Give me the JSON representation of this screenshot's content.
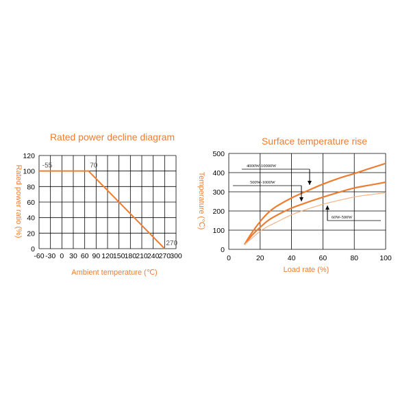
{
  "colors": {
    "accent": "#ED7D31",
    "grid": "#000000",
    "light_series": "#F4B183"
  },
  "chart_data": [
    {
      "type": "line",
      "title": "Rated power decline diagram",
      "xlabel": "Ambient temperature (℃)",
      "ylabel": "Rated power ratio (%)",
      "xlim": [
        -60,
        300
      ],
      "ylim": [
        0,
        120
      ],
      "x_ticks": [
        -60,
        -30,
        0,
        30,
        60,
        90,
        120,
        150,
        180,
        210,
        240,
        270,
        300
      ],
      "y_ticks": [
        0,
        20,
        40,
        60,
        80,
        100,
        120
      ],
      "grid": true,
      "series": [
        {
          "x": [
            -60,
            70,
            270
          ],
          "y": [
            100,
            100,
            0
          ]
        }
      ],
      "annotations": [
        {
          "text": "-55",
          "x": -55,
          "y": 100
        },
        {
          "text": "70",
          "x": 70,
          "y": 100
        },
        {
          "text": "270",
          "x": 270,
          "y": 0
        }
      ]
    },
    {
      "type": "line",
      "title": "Surface temperature rise",
      "xlabel": "Load rate (%)",
      "ylabel": "Temperature (℃)",
      "xlim": [
        0,
        100
      ],
      "ylim": [
        0,
        500
      ],
      "x_ticks": [
        0,
        20,
        40,
        60,
        80,
        100
      ],
      "y_ticks": [
        0,
        100,
        200,
        300,
        400,
        500
      ],
      "grid": true,
      "series": [
        {
          "name": "4000W-10000W",
          "x": [
            10,
            15,
            20,
            25,
            30,
            40,
            50,
            60,
            70,
            80,
            90,
            100
          ],
          "y": [
            25,
            90,
            145,
            190,
            222,
            268,
            305,
            340,
            370,
            395,
            422,
            448
          ]
        },
        {
          "name": "500W-1000W",
          "x": [
            10,
            15,
            20,
            25,
            30,
            40,
            50,
            60,
            70,
            80,
            90,
            100
          ],
          "y": [
            25,
            75,
            115,
            150,
            175,
            215,
            245,
            272,
            297,
            320,
            335,
            350
          ]
        },
        {
          "name": "60W-500W",
          "x": [
            10,
            15,
            20,
            25,
            30,
            40,
            50,
            60,
            70,
            80,
            90,
            100
          ],
          "y": [
            25,
            60,
            95,
            120,
            140,
            180,
            210,
            235,
            255,
            273,
            285,
            295
          ]
        }
      ]
    }
  ]
}
